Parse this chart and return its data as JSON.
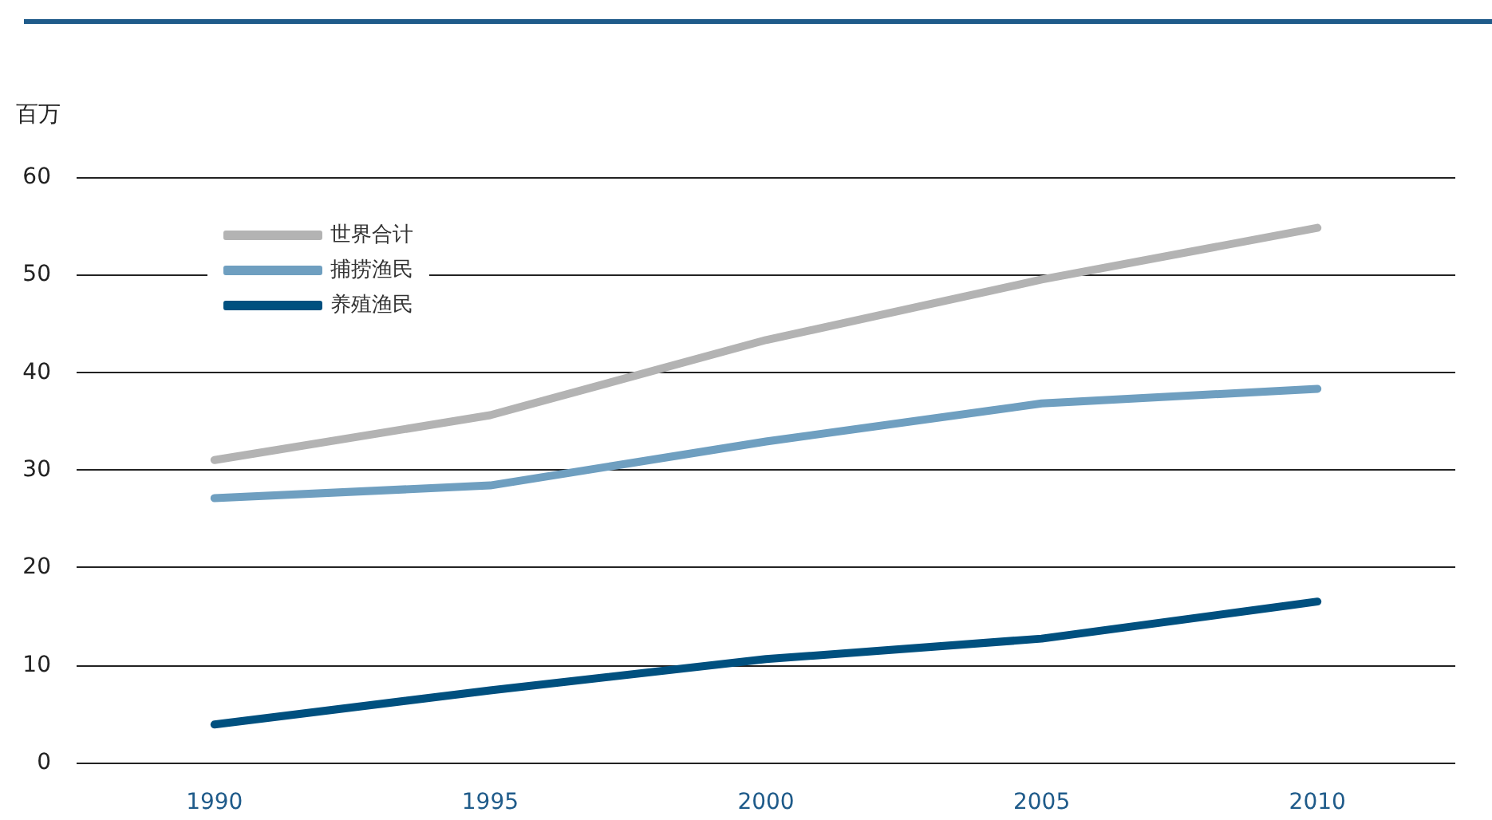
{
  "chart_data": {
    "type": "line",
    "ylabel": "百万",
    "categories": [
      "1990",
      "1995",
      "2000",
      "2005",
      "2010"
    ],
    "series": [
      {
        "name": "世界合计",
        "color": "#b3b3b3",
        "values": [
          31,
          35.6,
          43.3,
          49.5,
          54.8
        ]
      },
      {
        "name": "捕捞渔民",
        "color": "#6f9fc0",
        "values": [
          27.1,
          28.4,
          32.9,
          36.8,
          38.3
        ]
      },
      {
        "name": "养殖渔民",
        "color": "#00507f",
        "values": [
          3.9,
          7.4,
          10.6,
          12.7,
          16.5
        ]
      }
    ],
    "ylim": [
      0,
      60
    ],
    "yticks": [
      0,
      10,
      20,
      30,
      40,
      50,
      60
    ],
    "grid": "y",
    "legend": "top left",
    "marker": "none",
    "line_style": "solid"
  }
}
